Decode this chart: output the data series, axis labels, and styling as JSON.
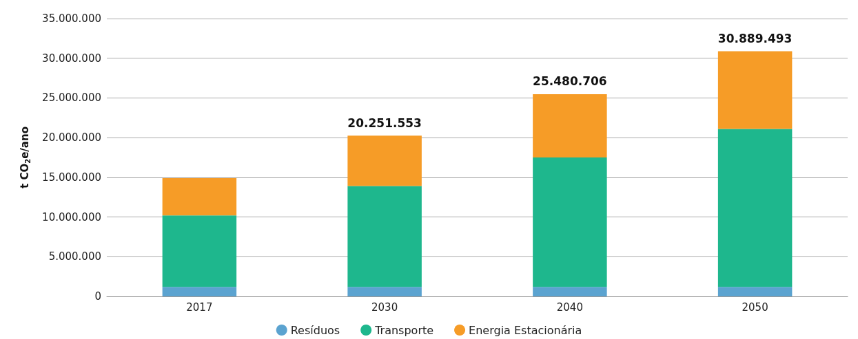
{
  "chart_data": {
    "type": "bar",
    "stacked": true,
    "ylabel": "t CO$_{2}$e/ano",
    "categories": [
      "2017",
      "2030",
      "2040",
      "2050"
    ],
    "series": [
      {
        "name": "Resíduos",
        "color": "#5ba3d0",
        "values": [
          1200000,
          1200000,
          1200000,
          1200000
        ]
      },
      {
        "name": "Transporte",
        "color": "#1eb78d",
        "values": [
          9000000,
          12700000,
          16300000,
          19900000
        ]
      },
      {
        "name": "Energia Estacionária",
        "color": "#f69c27",
        "values": [
          4700000,
          6351553,
          7980706,
          9789493
        ]
      }
    ],
    "totals": [
      null,
      "20.251.553",
      "25.480.706",
      "30.889.493"
    ],
    "ylim": [
      0,
      35000000
    ],
    "yticks": [
      {
        "value": 0,
        "label": "0"
      },
      {
        "value": 5000000,
        "label": "5.000.000"
      },
      {
        "value": 10000000,
        "label": "10.000.000"
      },
      {
        "value": 15000000,
        "label": "15.000.000"
      },
      {
        "value": 20000000,
        "label": "20.000.000"
      },
      {
        "value": 25000000,
        "label": "25.000.000"
      },
      {
        "value": 30000000,
        "label": "30.000.000"
      },
      {
        "value": 35000000,
        "label": "35.000.000"
      }
    ],
    "grid": "y",
    "legend": "bottom"
  }
}
